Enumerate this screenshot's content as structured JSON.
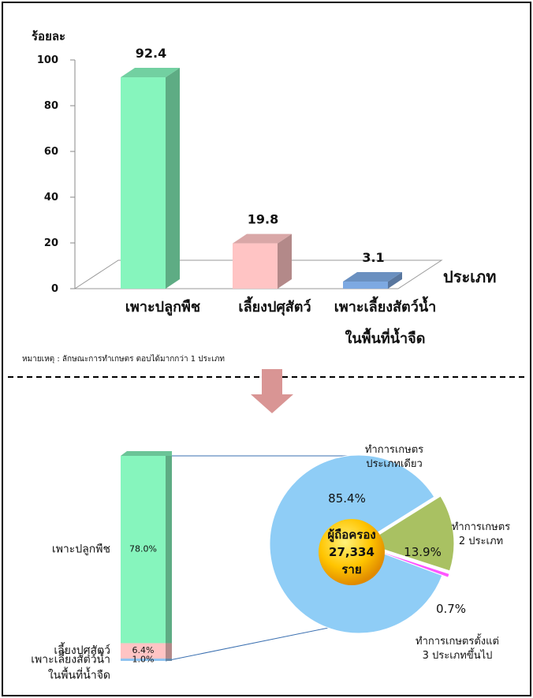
{
  "chart_data": [
    {
      "type": "bar3d",
      "y_label": "ร้อยละ",
      "x_label": "ประเภท",
      "categories": [
        "เพาะปลูกพืช",
        "เลี้ยงปศุสัตว์",
        "เพาะเลี้ยงสัตว์น้ำ\nในพื้นที่น้ำจืด"
      ],
      "values": [
        92.4,
        19.8,
        3.1
      ],
      "colors": [
        "#86f5bd",
        "#ffc4c4",
        "#7da9e2"
      ],
      "ylim": [
        0,
        100
      ],
      "yticks": [
        0,
        20,
        40,
        60,
        80,
        100
      ],
      "note": "หมายเหตุ : ลักษณะการทำเกษตร ตอบได้มากกว่า 1 ประเภท"
    },
    {
      "type": "pie",
      "center_label": "ผู้ถือครอง\n27,334\nราย",
      "categories": [
        "ทำการเกษตร\nประเภทเดียว",
        "ทำการเกษตร\n2 ประเภท",
        "ทำการเกษตรตั้งแต่\n3 ประเภทขึ้นไป"
      ],
      "values": [
        85.4,
        13.9,
        0.7
      ],
      "value_labels": [
        "85.4%",
        "13.9%",
        "0.7%"
      ],
      "colors": [
        "#8fcdf6",
        "#a9c162",
        "#ff55ff"
      ]
    },
    {
      "type": "stacked_bar",
      "categories": [
        "เพาะปลูกพืช",
        "เลี้ยงปศุสัตว์",
        "เพาะเลี้ยงสัตว์น้ำ\nในพื้นที่น้ำจืด"
      ],
      "values": [
        78.0,
        6.4,
        1.0
      ],
      "value_labels": [
        "78.0%",
        "6.4%",
        "1.0%"
      ],
      "colors": [
        "#86f5bd",
        "#ffc4c4",
        "#8fc3f0"
      ]
    }
  ]
}
